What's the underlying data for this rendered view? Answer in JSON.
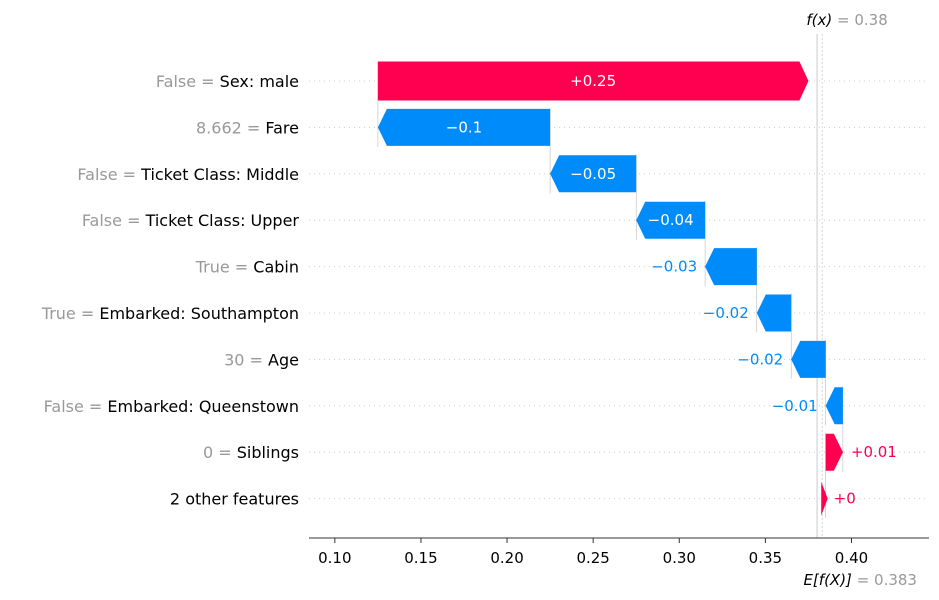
{
  "chart_data": {
    "type": "waterfall",
    "fx_label": "f(x)",
    "fx_value": 0.38,
    "fx_text": "= 0.38",
    "efx_label": "E[f(X)]",
    "efx_value": 0.383,
    "efx_text": "= 0.383",
    "xlim": [
      0.085,
      0.445
    ],
    "xticks": [
      0.1,
      0.15,
      0.2,
      0.25,
      0.3,
      0.35,
      0.4
    ],
    "xtick_labels": [
      "0.10",
      "0.15",
      "0.20",
      "0.25",
      "0.30",
      "0.35",
      "0.40"
    ],
    "features": [
      {
        "value": "False",
        "name": "Sex: male",
        "contribution": 0.25,
        "label": "+0.25"
      },
      {
        "value": "8.662",
        "name": "Fare",
        "contribution": -0.1,
        "label": "−0.1"
      },
      {
        "value": "False",
        "name": "Ticket Class: Middle",
        "contribution": -0.05,
        "label": "−0.05"
      },
      {
        "value": "False",
        "name": "Ticket Class: Upper",
        "contribution": -0.04,
        "label": "−0.04"
      },
      {
        "value": "True",
        "name": "Cabin",
        "contribution": -0.03,
        "label": "−0.03"
      },
      {
        "value": "True",
        "name": "Embarked: Southampton",
        "contribution": -0.02,
        "label": "−0.02"
      },
      {
        "value": "30",
        "name": "Age",
        "contribution": -0.02,
        "label": "−0.02"
      },
      {
        "value": "False",
        "name": "Embarked: Queenstown",
        "contribution": -0.01,
        "label": "−0.01"
      },
      {
        "value": "0",
        "name": "Siblings",
        "contribution": 0.01,
        "label": "+0.01"
      },
      {
        "value": "",
        "name": "2 other features",
        "contribution": 0.002,
        "label": "+0"
      }
    ],
    "colors": {
      "positive": "#ff0051",
      "negative": "#008bfb",
      "label_inside": "#ffffff",
      "muted": "#999999",
      "axis": "#333333"
    }
  }
}
